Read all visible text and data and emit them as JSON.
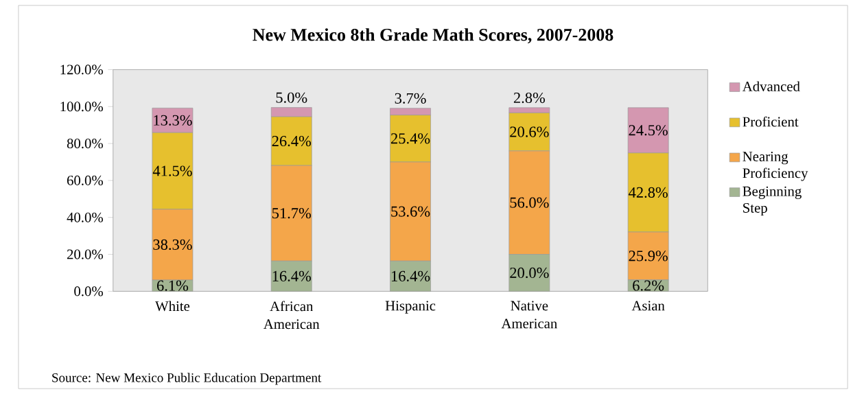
{
  "chart_data": {
    "type": "bar",
    "stacked": true,
    "title": "New Mexico 8th Grade Math Scores, 2007-2008",
    "categories": [
      "White",
      "African American",
      "Hispanic",
      "Native American",
      "Asian"
    ],
    "series": [
      {
        "name": "Beginning Step",
        "color": "#a3b592",
        "values": [
          6.1,
          16.4,
          16.4,
          20.0,
          6.2
        ],
        "value_labels": [
          "6.1%",
          "16.4%",
          "16.4%",
          "20.0%",
          "6.2%"
        ]
      },
      {
        "name": "Nearing Proficiency",
        "color": "#f4a64a",
        "values": [
          38.3,
          51.7,
          53.6,
          56.0,
          25.9
        ],
        "value_labels": [
          "38.3%",
          "51.7%",
          "53.6%",
          "56.0%",
          "25.9%"
        ]
      },
      {
        "name": "Proficient",
        "color": "#e6c02e",
        "values": [
          41.5,
          26.4,
          25.4,
          20.6,
          42.8
        ],
        "value_labels": [
          "41.5%",
          "26.4%",
          "25.4%",
          "20.6%",
          "42.8%"
        ]
      },
      {
        "name": "Advanced",
        "color": "#d497b0",
        "values": [
          13.3,
          5.0,
          3.7,
          2.8,
          24.5
        ],
        "value_labels": [
          "13.3%",
          "5.0%",
          "3.7%",
          "2.8%",
          "24.5%"
        ]
      }
    ],
    "ylim": [
      0,
      120
    ],
    "yticks": [
      {
        "value": 0,
        "label": "0.0%"
      },
      {
        "value": 20,
        "label": "20.0%"
      },
      {
        "value": 40,
        "label": "40.0%"
      },
      {
        "value": 60,
        "label": "60.0%"
      },
      {
        "value": 80,
        "label": "80.0%"
      },
      {
        "value": 100,
        "label": "100.0%"
      },
      {
        "value": 120,
        "label": "120.0%"
      }
    ],
    "legend": "right",
    "annotations": [
      "Source:  New Mexico Public Education Department"
    ]
  }
}
